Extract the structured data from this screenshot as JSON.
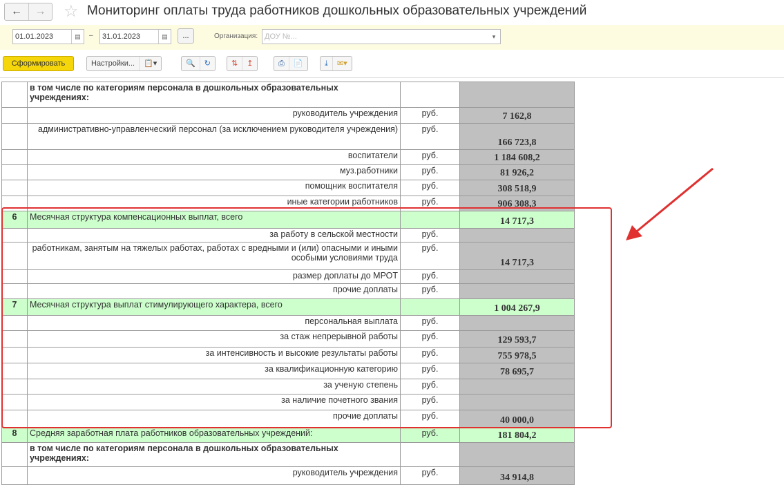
{
  "header": {
    "title": "Мониторинг оплаты труда работников дошкольных образовательных учреждений",
    "back_icon": "arrow-left",
    "forward_icon": "arrow-right",
    "favorite_icon": "star"
  },
  "filter": {
    "date_from": "01.01.2023",
    "date_sep": "–",
    "date_to": "31.01.2023",
    "more_label": "...",
    "org_label": "Организация:",
    "org_value": "ДОУ №..."
  },
  "toolbar": {
    "generate_label": "Сформировать",
    "settings_label": "Настройки..."
  },
  "table": {
    "rows": [
      {
        "num": "",
        "label": "в том числе по категориям персонала в дошкольных образовательных учреждениях:",
        "unit": "",
        "value": "",
        "type": "hd",
        "h": 37
      },
      {
        "num": "",
        "label": "руководитель учреждения",
        "unit": "руб.",
        "value": "7 162,8",
        "type": "",
        "h": 23
      },
      {
        "num": "",
        "label": "административно-управленческий персонал (за исключением руководителя учреждения)",
        "unit": "руб.",
        "value": "166 723,8",
        "type": "",
        "h": 38
      },
      {
        "num": "",
        "label": "воспитатели",
        "unit": "руб.",
        "value": "1 184 608,2",
        "type": "",
        "h": 22
      },
      {
        "num": "",
        "label": "муз.работники",
        "unit": "руб.",
        "value": "81 926,2",
        "type": "",
        "h": 22
      },
      {
        "num": "",
        "label": "помощник воспитателя",
        "unit": "руб.",
        "value": "308 518,9",
        "type": "",
        "h": 23
      },
      {
        "num": "",
        "label": "иные категории работников",
        "unit": "руб.",
        "value": "906 308,3",
        "type": "",
        "h": 22
      },
      {
        "num": "6",
        "label": "Месячная структура компенсационных выплат, всего",
        "unit": "",
        "value": "14 717,3",
        "type": "g",
        "h": 25
      },
      {
        "num": "",
        "label": "за работу в сельской местности",
        "unit": "руб.",
        "value": "",
        "type": "",
        "h": 20
      },
      {
        "num": "",
        "label": "работникам, занятым на тяжелых работах, работах с вредными и (или) опасными и иными особыми условиями труда",
        "unit": "руб.",
        "value": "14 717,3",
        "type": "",
        "h": 40
      },
      {
        "num": "",
        "label": "размер доплаты до МРОТ",
        "unit": "руб.",
        "value": "",
        "type": "",
        "h": 20
      },
      {
        "num": "",
        "label": "прочие доплаты",
        "unit": "руб.",
        "value": "",
        "type": "",
        "h": 22
      },
      {
        "num": "7",
        "label": "Месячная структура выплат стимулирующего характера, всего",
        "unit": "",
        "value": "1 004 267,9",
        "type": "g",
        "h": 24
      },
      {
        "num": "",
        "label": "персональная выплата",
        "unit": "руб.",
        "value": "",
        "type": "",
        "h": 22
      },
      {
        "num": "",
        "label": "за стаж непрерывной работы",
        "unit": "руб.",
        "value": "129 593,7",
        "type": "",
        "h": 24
      },
      {
        "num": "",
        "label": "за интенсивность и высокие результаты работы",
        "unit": "руб.",
        "value": "755 978,5",
        "type": "",
        "h": 23
      },
      {
        "num": "",
        "label": "за квалификационную категорию",
        "unit": "руб.",
        "value": "78 695,7",
        "type": "",
        "h": 23
      },
      {
        "num": "",
        "label": "за ученую степень",
        "unit": "руб.",
        "value": "",
        "type": "",
        "h": 22
      },
      {
        "num": "",
        "label": "за наличие почетного звания",
        "unit": "руб.",
        "value": "",
        "type": "",
        "h": 23
      },
      {
        "num": "",
        "label": "прочие доплаты",
        "unit": "руб.",
        "value": "40 000,0",
        "type": "",
        "h": 25
      },
      {
        "num": "8",
        "label": "Средняя заработная плата работников образовательных учреждений:",
        "unit": "руб.",
        "value": "181 804,2",
        "type": "g",
        "h": 22
      },
      {
        "num": "",
        "label": "в том числе по категориям персонала в дошкольных образовательных учреждениях:",
        "unit": "",
        "value": "",
        "type": "hd",
        "h": 35
      },
      {
        "num": "",
        "label": "руководитель учреждения",
        "unit": "руб.",
        "value": "34 914,8",
        "type": "",
        "h": 26
      }
    ]
  },
  "annotation": {
    "color": "#e03030"
  }
}
